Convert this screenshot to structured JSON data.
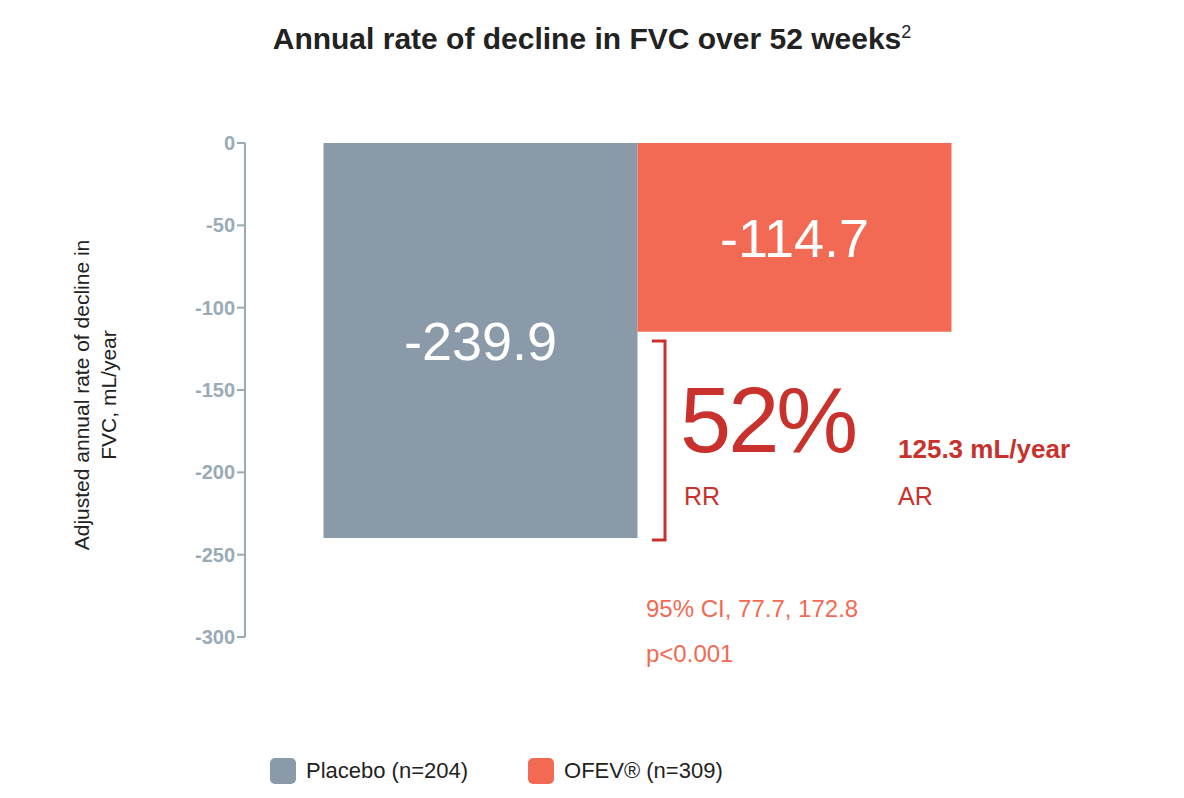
{
  "chart_data": {
    "type": "bar",
    "title": "Annual rate of decline in FVC over 52 weeks",
    "title_reference": "2",
    "y_label": "Adjusted annual rate of decline in FVC, mL/year",
    "categories": [
      null
    ],
    "series": [
      {
        "name": "Placebo (n=204)",
        "color": "#8a9aa9",
        "values": [
          -239.9
        ]
      },
      {
        "name": "OFEV® (n=309)",
        "color": "#f26a53",
        "values": [
          -114.7
        ]
      }
    ],
    "ylim": [
      -300,
      0
    ],
    "yticks": [
      0,
      -50,
      -100,
      -150,
      -200,
      -250,
      -300
    ],
    "grid": false,
    "data_labels": true,
    "tick_labels": "y",
    "legend": "bottom",
    "annotations": {
      "relative_reduction": "52%",
      "relative_reduction_label": "RR",
      "absolute_reduction": "125.3 mL/year",
      "absolute_reduction_label": "AR",
      "confidence_interval": "95% CI, 77.7, 172.8",
      "p_value": "p<0.001"
    }
  }
}
